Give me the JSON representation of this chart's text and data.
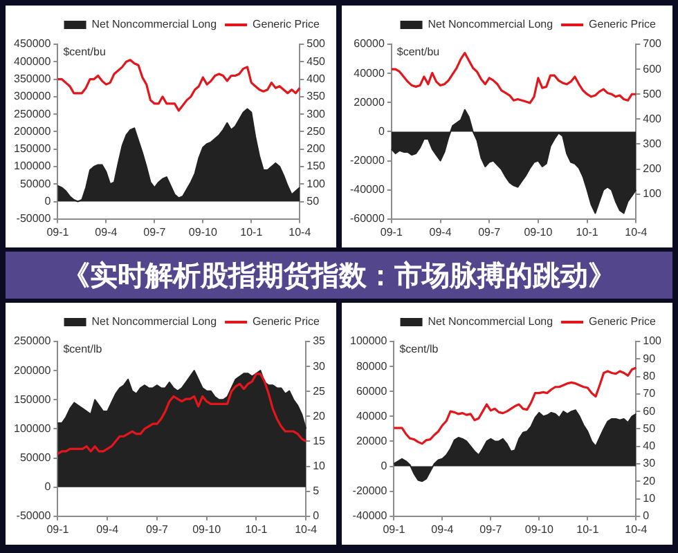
{
  "chart_data": [
    {
      "type": "line",
      "annotations": [
        "$cent/bu"
      ],
      "legend": "top right",
      "categories": [
        "09-1",
        null,
        null,
        null,
        null,
        null,
        null,
        null,
        null,
        null,
        null,
        null,
        "09-4",
        null,
        null,
        null,
        null,
        null,
        null,
        null,
        null,
        null,
        null,
        null,
        "09-7",
        null,
        null,
        null,
        null,
        null,
        null,
        null,
        null,
        null,
        null,
        null,
        "09-10",
        null,
        null,
        null,
        null,
        null,
        null,
        null,
        null,
        null,
        null,
        null,
        "10-1",
        null,
        null,
        null,
        null,
        null,
        null,
        null,
        null,
        null,
        null,
        null,
        "10-4"
      ],
      "series": [
        {
          "name": "Net Noncommercial Long",
          "type": "area",
          "color": "#222222",
          "values": [
            45000,
            40000,
            30000,
            15000,
            5000,
            0,
            5000,
            40000,
            90000,
            100000,
            105000,
            105000,
            85000,
            50000,
            55000,
            110000,
            160000,
            190000,
            205000,
            210000,
            175000,
            140000,
            100000,
            55000,
            40000,
            55000,
            65000,
            70000,
            45000,
            20000,
            10000,
            15000,
            35000,
            55000,
            80000,
            125000,
            155000,
            165000,
            170000,
            180000,
            190000,
            205000,
            225000,
            205000,
            215000,
            235000,
            255000,
            265000,
            255000,
            185000,
            130000,
            90000,
            90000,
            100000,
            110000,
            100000,
            75000,
            45000,
            20000,
            30000,
            40000
          ]
        },
        {
          "name": "Generic Price",
          "type": "line",
          "axis": "y2",
          "color": "#e3161c",
          "values": [
            400,
            400,
            390,
            380,
            360,
            360,
            360,
            375,
            400,
            400,
            410,
            395,
            385,
            390,
            415,
            425,
            435,
            450,
            455,
            445,
            440,
            405,
            385,
            340,
            330,
            330,
            350,
            330,
            330,
            330,
            310,
            325,
            340,
            350,
            370,
            380,
            405,
            385,
            395,
            410,
            415,
            410,
            395,
            410,
            410,
            415,
            430,
            435,
            390,
            380,
            370,
            365,
            370,
            390,
            375,
            380,
            370,
            360,
            370,
            360,
            375
          ]
        }
      ],
      "ylim": [
        -50000,
        450000
      ],
      "yticks": [
        -50000,
        0,
        50000,
        100000,
        150000,
        200000,
        250000,
        300000,
        350000,
        400000,
        450000
      ],
      "y2lim": [
        0,
        500
      ],
      "y2ticks": [
        50,
        100,
        150,
        200,
        250,
        300,
        350,
        400,
        450,
        500
      ]
    },
    {
      "type": "line",
      "annotations": [
        "$cent/bu"
      ],
      "legend": "top right",
      "categories": [
        "09-1",
        null,
        null,
        null,
        null,
        null,
        null,
        null,
        null,
        null,
        null,
        null,
        "09-4",
        null,
        null,
        null,
        null,
        null,
        null,
        null,
        null,
        null,
        null,
        null,
        "09-7",
        null,
        null,
        null,
        null,
        null,
        null,
        null,
        null,
        null,
        null,
        null,
        "09-10",
        null,
        null,
        null,
        null,
        null,
        null,
        null,
        null,
        null,
        null,
        null,
        "10-1",
        null,
        null,
        null,
        null,
        null,
        null,
        null,
        null,
        null,
        null,
        null,
        "10-4"
      ],
      "series": [
        {
          "name": "Net Noncommercial Long",
          "type": "area",
          "color": "#222222",
          "values": [
            -12000,
            -15000,
            -13000,
            -14000,
            -14000,
            -16000,
            -15000,
            -11000,
            -5000,
            -5000,
            -12000,
            -16000,
            -20000,
            -14000,
            -4000,
            4000,
            6000,
            8000,
            15000,
            10000,
            0,
            -6000,
            -18000,
            -24000,
            -21000,
            -20000,
            -23000,
            -26000,
            -31000,
            -35000,
            -37000,
            -38000,
            -34000,
            -30000,
            -25000,
            -21000,
            -20000,
            -24000,
            -22000,
            -10000,
            -5000,
            -1000,
            -3000,
            -15000,
            -21000,
            -22000,
            -25000,
            -31000,
            -40000,
            -50000,
            -56000,
            -48000,
            -40000,
            -38000,
            -40000,
            -48000,
            -54000,
            -56000,
            -48000,
            -44000,
            -40000
          ]
        },
        {
          "name": "Generic Price",
          "type": "line",
          "axis": "y2",
          "color": "#e3161c",
          "values": [
            600,
            600,
            590,
            570,
            550,
            535,
            530,
            535,
            570,
            540,
            585,
            550,
            535,
            540,
            555,
            580,
            605,
            640,
            665,
            635,
            605,
            590,
            560,
            540,
            565,
            555,
            540,
            515,
            505,
            495,
            475,
            480,
            475,
            470,
            465,
            490,
            565,
            525,
            530,
            575,
            575,
            555,
            545,
            540,
            550,
            570,
            540,
            515,
            500,
            490,
            495,
            510,
            520,
            505,
            500,
            490,
            495,
            480,
            475,
            500,
            500
          ]
        }
      ],
      "ylim": [
        -60000,
        60000
      ],
      "yticks": [
        -60000,
        -40000,
        -20000,
        0,
        20000,
        40000,
        60000
      ],
      "y2lim": [
        0,
        700
      ],
      "y2ticks": [
        100,
        200,
        300,
        400,
        500,
        600,
        700
      ]
    },
    {
      "type": "other",
      "title": "《实时解析股指期货指数：市场脉搏的跳动》"
    },
    {
      "type": "line",
      "annotations": [
        "$cent/lb"
      ],
      "legend": "top right",
      "categories": [
        "09-1",
        null,
        null,
        null,
        null,
        null,
        null,
        null,
        null,
        null,
        null,
        null,
        "09-4",
        null,
        null,
        null,
        null,
        null,
        null,
        null,
        null,
        null,
        null,
        null,
        "09-7",
        null,
        null,
        null,
        null,
        null,
        null,
        null,
        null,
        null,
        null,
        null,
        "09-10",
        null,
        null,
        null,
        null,
        null,
        null,
        null,
        null,
        null,
        null,
        null,
        "10-1",
        null,
        null,
        null,
        null,
        null,
        null,
        null,
        null,
        null,
        null,
        null,
        "10-4"
      ],
      "series": [
        {
          "name": "Net Noncommercial Long",
          "type": "area",
          "color": "#222222",
          "values": [
            110000,
            110000,
            120000,
            135000,
            145000,
            140000,
            135000,
            130000,
            125000,
            150000,
            140000,
            130000,
            130000,
            145000,
            160000,
            170000,
            175000,
            185000,
            165000,
            160000,
            170000,
            175000,
            170000,
            170000,
            175000,
            170000,
            170000,
            180000,
            170000,
            165000,
            170000,
            180000,
            190000,
            200000,
            185000,
            170000,
            165000,
            165000,
            155000,
            150000,
            150000,
            155000,
            170000,
            185000,
            190000,
            195000,
            195000,
            190000,
            195000,
            200000,
            180000,
            175000,
            175000,
            170000,
            170000,
            160000,
            165000,
            150000,
            140000,
            125000,
            100000
          ]
        },
        {
          "name": "Generic Price",
          "type": "line",
          "axis": "y2",
          "color": "#e3161c",
          "values": [
            12.5,
            13,
            13,
            13.5,
            13.5,
            13.5,
            13.5,
            14,
            13,
            14,
            13,
            13,
            13.5,
            14,
            15,
            16,
            16,
            16.5,
            17,
            16.5,
            16.5,
            17.5,
            18,
            18.5,
            18.5,
            19.5,
            21,
            23,
            24,
            23.5,
            23,
            23.5,
            23.5,
            24,
            22,
            24,
            23,
            22.5,
            22.5,
            22.5,
            22.5,
            22.5,
            25,
            26,
            26.5,
            25.5,
            26.5,
            27,
            28.5,
            28.5,
            27,
            24.5,
            21.5,
            19.5,
            18,
            17,
            17,
            17,
            16.5,
            15.5,
            15
          ]
        }
      ],
      "ylim": [
        -50000,
        250000
      ],
      "yticks": [
        -50000,
        0,
        50000,
        100000,
        150000,
        200000,
        250000
      ],
      "y2lim": [
        0,
        35
      ],
      "y2ticks": [
        0,
        5,
        10,
        15,
        20,
        25,
        30,
        35
      ]
    },
    {
      "type": "line",
      "annotations": [
        "$cent/lb"
      ],
      "legend": "top right",
      "categories": [
        "09-1",
        null,
        null,
        null,
        null,
        null,
        null,
        null,
        null,
        null,
        null,
        null,
        "09-4",
        null,
        null,
        null,
        null,
        null,
        null,
        null,
        null,
        null,
        null,
        null,
        "09-7",
        null,
        null,
        null,
        null,
        null,
        null,
        null,
        null,
        null,
        null,
        null,
        "09-10",
        null,
        null,
        null,
        null,
        null,
        null,
        null,
        null,
        null,
        null,
        null,
        "10-1",
        null,
        null,
        null,
        null,
        null,
        null,
        null,
        null,
        null,
        null,
        null,
        "10-4"
      ],
      "series": [
        {
          "name": "Net Noncommercial Long",
          "type": "area",
          "color": "#222222",
          "values": [
            2000,
            4000,
            6000,
            4000,
            1000,
            -6000,
            -11000,
            -12000,
            -10000,
            -4000,
            2000,
            5000,
            6000,
            9000,
            14000,
            21000,
            23000,
            22000,
            20000,
            16000,
            12000,
            9000,
            14000,
            20000,
            22000,
            20000,
            20000,
            22000,
            18000,
            12000,
            13000,
            22000,
            27000,
            28000,
            32000,
            39000,
            43000,
            40000,
            41000,
            43000,
            42000,
            39000,
            44000,
            42000,
            44000,
            45000,
            40000,
            33000,
            28000,
            20000,
            16000,
            23000,
            30000,
            36000,
            38000,
            38000,
            37000,
            38000,
            35000,
            40000,
            42000
          ]
        },
        {
          "name": "Generic Price",
          "type": "line",
          "axis": "y2",
          "color": "#e3161c",
          "values": [
            50.5,
            50.5,
            50.5,
            47,
            44.5,
            44,
            42.5,
            41.5,
            43.5,
            44,
            46.5,
            48.5,
            52,
            54.5,
            60,
            59.5,
            58.5,
            59,
            58,
            58.5,
            55,
            56,
            60,
            64,
            60.5,
            61.5,
            59.5,
            59,
            60,
            61.5,
            63,
            64,
            61.5,
            61,
            65,
            70.5,
            70.5,
            71,
            70.5,
            72.5,
            74,
            74,
            75,
            76,
            76.5,
            76,
            75,
            74,
            73.5,
            70.5,
            68.5,
            75,
            82,
            83,
            82,
            81.5,
            83,
            82,
            80.5,
            84,
            85
          ]
        }
      ],
      "ylim": [
        -40000,
        100000
      ],
      "yticks": [
        -40000,
        -20000,
        0,
        20000,
        40000,
        60000,
        80000,
        100000
      ],
      "y2lim": [
        0,
        100
      ],
      "y2ticks": [
        0,
        10,
        20,
        30,
        40,
        50,
        60,
        70,
        80,
        90,
        100
      ]
    }
  ]
}
